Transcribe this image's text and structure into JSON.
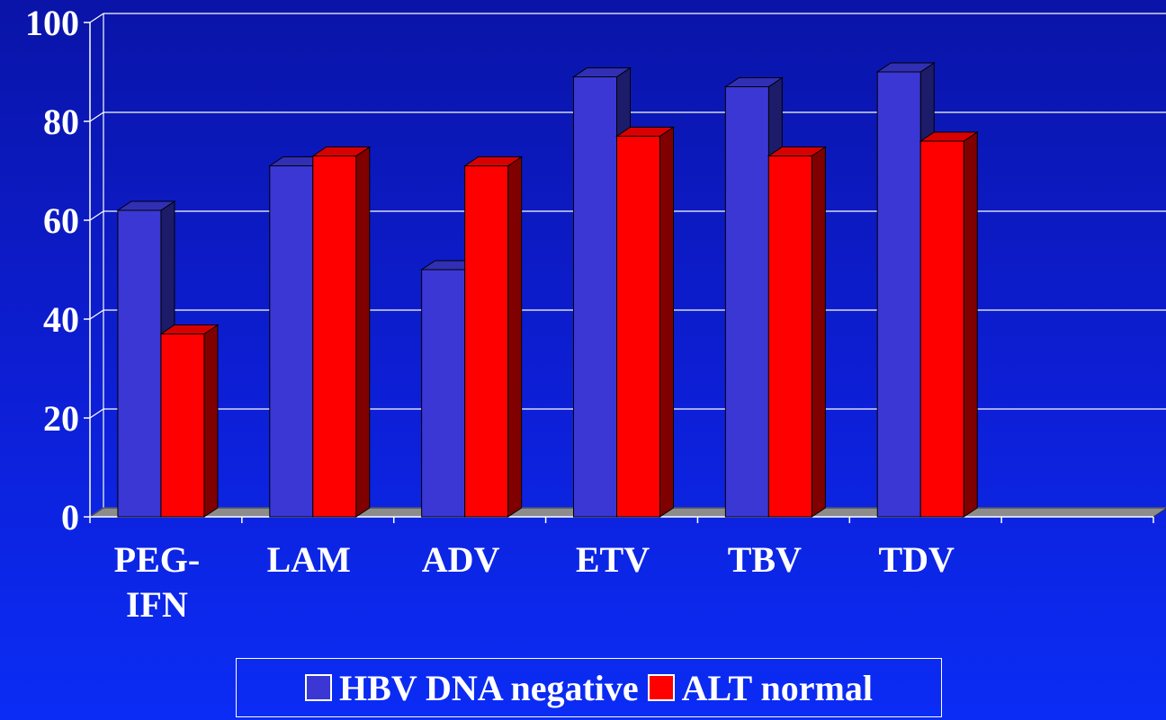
{
  "chart_data": {
    "type": "bar",
    "categories": [
      "PEG-\nIFN",
      "LAM",
      "ADV",
      "ETV",
      "TBV",
      "TDV"
    ],
    "series": [
      {
        "name": "HBV DNA negative",
        "values": [
          62,
          71,
          50,
          89,
          87,
          90
        ],
        "color": "#3a37d4"
      },
      {
        "name": "ALT normal",
        "values": [
          37,
          73,
          71,
          77,
          73,
          76
        ],
        "color": "#ff0000"
      }
    ],
    "yticks": [
      0,
      20,
      40,
      60,
      80,
      100
    ],
    "ylim": [
      0,
      100
    ],
    "grid": true,
    "style": "3d",
    "legend_position": "bottom"
  }
}
